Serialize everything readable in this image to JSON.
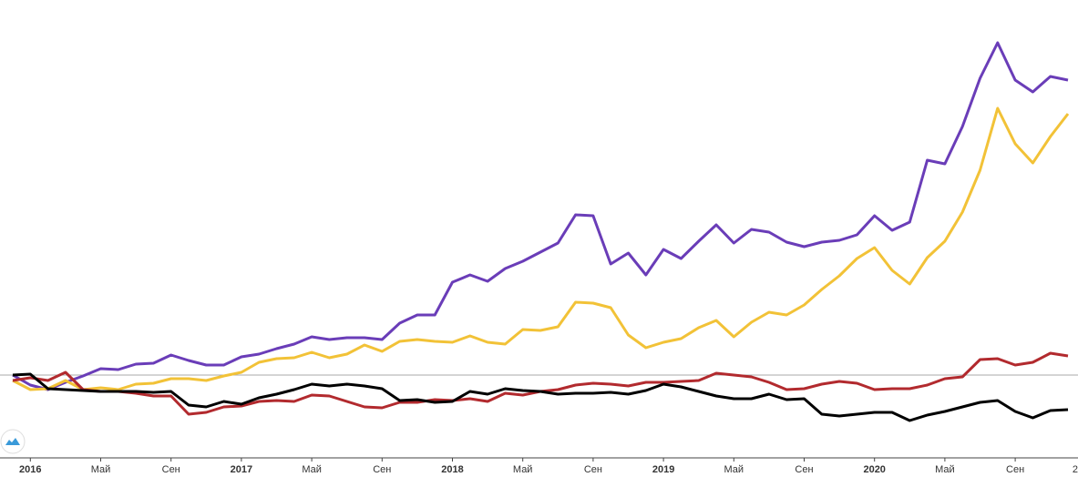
{
  "chart_data": {
    "type": "line",
    "x": [
      "2015-12",
      "2016-01",
      "2016-02",
      "2016-03",
      "2016-04",
      "2016-05",
      "2016-06",
      "2016-07",
      "2016-08",
      "2016-09",
      "2016-10",
      "2016-11",
      "2016-12",
      "2017-01",
      "2017-02",
      "2017-03",
      "2017-04",
      "2017-05",
      "2017-06",
      "2017-07",
      "2017-08",
      "2017-09",
      "2017-10",
      "2017-11",
      "2017-12",
      "2018-01",
      "2018-02",
      "2018-03",
      "2018-04",
      "2018-05",
      "2018-06",
      "2018-07",
      "2018-08",
      "2018-09",
      "2018-10",
      "2018-11",
      "2018-12",
      "2019-01",
      "2019-02",
      "2019-03",
      "2019-04",
      "2019-05",
      "2019-06",
      "2019-07",
      "2019-08",
      "2019-09",
      "2019-10",
      "2019-11",
      "2019-12",
      "2020-01",
      "2020-02",
      "2020-03",
      "2020-04",
      "2020-05",
      "2020-06",
      "2020-07",
      "2020-08",
      "2020-09",
      "2020-10",
      "2020-11",
      "2020-12"
    ],
    "series": [
      {
        "color": "#6a3db8",
        "values": [
          0,
          -11,
          -16,
          -8,
          -1,
          7,
          6,
          12,
          13,
          22,
          16,
          11,
          11,
          20,
          23,
          29,
          34,
          42,
          39,
          41,
          41,
          39,
          57,
          66,
          66,
          102,
          110,
          103,
          117,
          125,
          135,
          145,
          176,
          175,
          122,
          134,
          110,
          138,
          128,
          147,
          165,
          145,
          160,
          157,
          146,
          141,
          146,
          148,
          154,
          175,
          159,
          168,
          236,
          232,
          273,
          326,
          365,
          324,
          311,
          328,
          324
        ]
      },
      {
        "color": "#f2c237",
        "values": [
          -6,
          -16,
          -15,
          -6,
          -16,
          -14,
          -16,
          -10,
          -9,
          -4,
          -4,
          -6,
          -1,
          3,
          14,
          18,
          19,
          25,
          19,
          23,
          33,
          26,
          37,
          39,
          37,
          36,
          43,
          36,
          34,
          50,
          49,
          53,
          80,
          79,
          74,
          44,
          30,
          36,
          40,
          52,
          60,
          42,
          58,
          69,
          66,
          77,
          94,
          109,
          128,
          140,
          115,
          100,
          129,
          147,
          179,
          225,
          293,
          254,
          233,
          262,
          287
        ]
      },
      {
        "color": "#b22a2e",
        "values": [
          -6,
          -3,
          -6,
          3,
          -16,
          -18,
          -18,
          -20,
          -23,
          -23,
          -43,
          -41,
          -35,
          -34,
          -29,
          -28,
          -29,
          -22,
          -23,
          -29,
          -35,
          -36,
          -30,
          -30,
          -27,
          -28,
          -26,
          -29,
          -20,
          -22,
          -18,
          -16,
          -11,
          -9,
          -10,
          -12,
          -8,
          -8,
          -7,
          -6,
          2,
          0,
          -2,
          -8,
          -16,
          -15,
          -10,
          -7,
          -9,
          -16,
          -15,
          -15,
          -11,
          -4,
          -2,
          17,
          18,
          11,
          14,
          24,
          21
        ]
      },
      {
        "color": "#000000",
        "values": [
          0,
          1,
          -15,
          -16,
          -17,
          -18,
          -18,
          -18,
          -19,
          -18,
          -33,
          -35,
          -29,
          -32,
          -25,
          -21,
          -16,
          -10,
          -12,
          -10,
          -12,
          -15,
          -28,
          -27,
          -30,
          -29,
          -18,
          -21,
          -15,
          -17,
          -18,
          -21,
          -20,
          -20,
          -19,
          -21,
          -17,
          -10,
          -13,
          -18,
          -23,
          -26,
          -26,
          -21,
          -27,
          -26,
          -43,
          -45,
          -43,
          -41,
          -41,
          -50,
          -44,
          -40,
          -35,
          -30,
          -28,
          -40,
          -47,
          -39,
          -38
        ]
      }
    ],
    "xlim": [
      "2015-11",
      "2021-01"
    ],
    "xticks": [
      {
        "value": "2016-01",
        "label": "2016"
      },
      {
        "value": "2016-05",
        "label": "Май"
      },
      {
        "value": "2016-09",
        "label": "Сен"
      },
      {
        "value": "2017-01",
        "label": "2017"
      },
      {
        "value": "2017-05",
        "label": "Май"
      },
      {
        "value": "2017-09",
        "label": "Сен"
      },
      {
        "value": "2018-01",
        "label": "2018"
      },
      {
        "value": "2018-05",
        "label": "Май"
      },
      {
        "value": "2018-09",
        "label": "Сен"
      },
      {
        "value": "2019-01",
        "label": "2019"
      },
      {
        "value": "2019-05",
        "label": "Май"
      },
      {
        "value": "2019-09",
        "label": "Сен"
      },
      {
        "value": "2020-01",
        "label": "2020"
      },
      {
        "value": "2020-05",
        "label": "Май"
      },
      {
        "value": "2020-09",
        "label": "Сен"
      },
      {
        "value": "2021-01",
        "label": "2"
      }
    ],
    "ylim": [
      -91,
      412
    ],
    "reference_line": 0
  }
}
